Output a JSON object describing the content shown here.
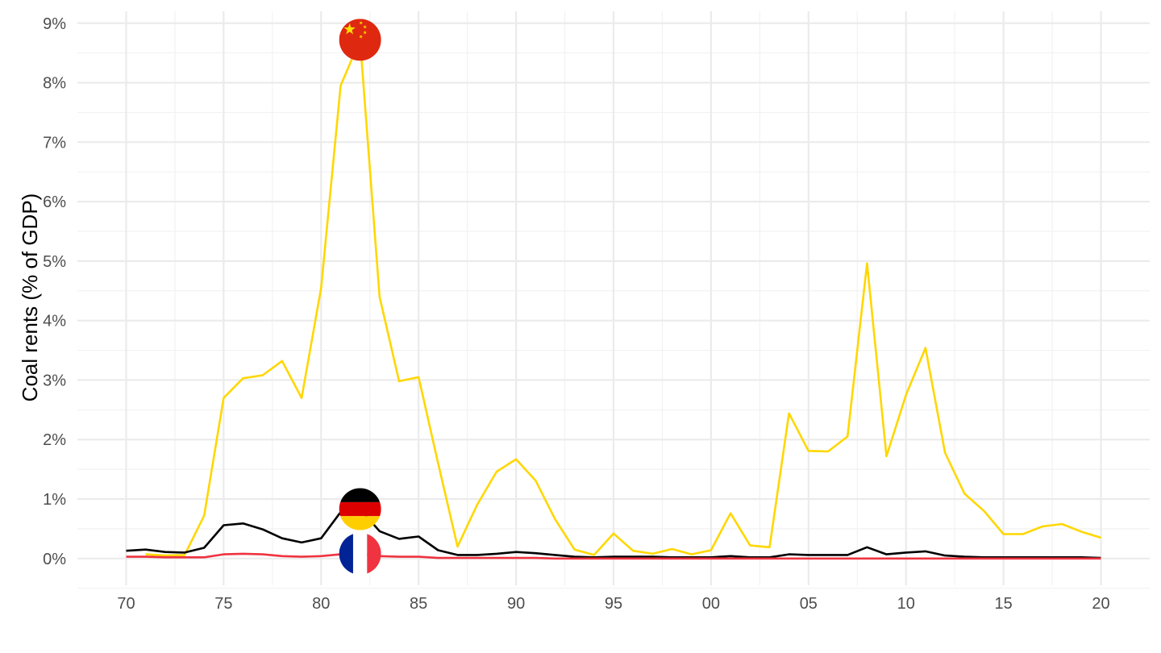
{
  "chart_data": {
    "type": "line",
    "title": "",
    "xlabel": "",
    "ylabel": "Coal rents (% of GDP)",
    "x_ticks": [
      {
        "value": 1970,
        "label": "70"
      },
      {
        "value": 1975,
        "label": "75"
      },
      {
        "value": 1980,
        "label": "80"
      },
      {
        "value": 1985,
        "label": "85"
      },
      {
        "value": 1990,
        "label": "90"
      },
      {
        "value": 1995,
        "label": "95"
      },
      {
        "value": 2000,
        "label": "00"
      },
      {
        "value": 2005,
        "label": "05"
      },
      {
        "value": 2010,
        "label": "10"
      },
      {
        "value": 2015,
        "label": "15"
      },
      {
        "value": 2020,
        "label": "20"
      }
    ],
    "y_ticks": [
      {
        "value": 0,
        "label": "0%"
      },
      {
        "value": 1,
        "label": "1%"
      },
      {
        "value": 2,
        "label": "2%"
      },
      {
        "value": 3,
        "label": "3%"
      },
      {
        "value": 4,
        "label": "4%"
      },
      {
        "value": 5,
        "label": "5%"
      },
      {
        "value": 6,
        "label": "6%"
      },
      {
        "value": 7,
        "label": "7%"
      },
      {
        "value": 8,
        "label": "8%"
      },
      {
        "value": 9,
        "label": "9%"
      }
    ],
    "xlim": [
      1967.5,
      2022.5
    ],
    "ylim": [
      -0.45,
      9.2
    ],
    "grid": true,
    "legend": "flags",
    "series": [
      {
        "country": "China",
        "color": "#FFD700",
        "flag_icon": "china-flag-icon",
        "flag_year": 1982,
        "x": [
          1971,
          1972,
          1973,
          1974,
          1975,
          1976,
          1977,
          1978,
          1979,
          1980,
          1981,
          1982,
          1983,
          1984,
          1985,
          1986,
          1987,
          1988,
          1989,
          1990,
          1991,
          1992,
          1993,
          1994,
          1995,
          1996,
          1997,
          1998,
          1999,
          2000,
          2001,
          2002,
          2003,
          2004,
          2005,
          2006,
          2007,
          2008,
          2009,
          2010,
          2011,
          2012,
          2013,
          2014,
          2015,
          2016,
          2017,
          2018,
          2019,
          2020
        ],
        "y": [
          0.07,
          0.05,
          0.06,
          0.72,
          2.7,
          3.03,
          3.08,
          3.32,
          2.7,
          4.55,
          7.95,
          8.72,
          4.4,
          2.98,
          3.05,
          1.6,
          0.2,
          0.9,
          1.46,
          1.67,
          1.31,
          0.66,
          0.15,
          0.06,
          0.42,
          0.13,
          0.08,
          0.16,
          0.07,
          0.14,
          0.76,
          0.22,
          0.19,
          2.44,
          1.81,
          1.8,
          2.05,
          4.96,
          1.72,
          2.75,
          3.54,
          1.78,
          1.09,
          0.8,
          0.41,
          0.41,
          0.54,
          0.58,
          0.45,
          0.35
        ]
      },
      {
        "country": "Germany",
        "color": "#000000",
        "flag_icon": "germany-flag-icon",
        "flag_year": 1982,
        "x": [
          1970,
          1971,
          1972,
          1973,
          1974,
          1975,
          1976,
          1977,
          1978,
          1979,
          1980,
          1981,
          1982,
          1983,
          1984,
          1985,
          1986,
          1987,
          1988,
          1989,
          1990,
          1991,
          1992,
          1993,
          1994,
          1995,
          1996,
          1997,
          1998,
          1999,
          2000,
          2001,
          2002,
          2003,
          2004,
          2005,
          2006,
          2007,
          2008,
          2009,
          2010,
          2011,
          2012,
          2013,
          2014,
          2015,
          2016,
          2017,
          2018,
          2019,
          2020
        ],
        "y": [
          0.13,
          0.15,
          0.11,
          0.1,
          0.18,
          0.56,
          0.59,
          0.49,
          0.34,
          0.27,
          0.34,
          0.78,
          0.83,
          0.46,
          0.33,
          0.37,
          0.14,
          0.06,
          0.06,
          0.08,
          0.11,
          0.09,
          0.06,
          0.03,
          0.02,
          0.03,
          0.03,
          0.03,
          0.02,
          0.02,
          0.02,
          0.04,
          0.02,
          0.02,
          0.07,
          0.06,
          0.06,
          0.06,
          0.19,
          0.07,
          0.1,
          0.12,
          0.05,
          0.03,
          0.02,
          0.02,
          0.02,
          0.02,
          0.02,
          0.02,
          0.01
        ]
      },
      {
        "country": "France",
        "color": "#EF3340",
        "flag_icon": "france-flag-icon",
        "flag_year": 1982,
        "x": [
          1970,
          1971,
          1972,
          1973,
          1974,
          1975,
          1976,
          1977,
          1978,
          1979,
          1980,
          1981,
          1982,
          1983,
          1984,
          1985,
          1986,
          1987,
          1988,
          1989,
          1990,
          1991,
          1992,
          1993,
          1994,
          1995,
          1996,
          1997,
          1998,
          1999,
          2000,
          2001,
          2002,
          2003,
          2004,
          2005,
          2006,
          2007,
          2008,
          2009,
          2010,
          2011,
          2012,
          2013,
          2014,
          2015,
          2016,
          2017,
          2018,
          2019,
          2020
        ],
        "y": [
          0.03,
          0.03,
          0.02,
          0.02,
          0.02,
          0.07,
          0.08,
          0.07,
          0.04,
          0.03,
          0.04,
          0.07,
          0.08,
          0.04,
          0.03,
          0.03,
          0.01,
          0.01,
          0.01,
          0.01,
          0.01,
          0.01,
          0.0,
          0.0,
          0.0,
          0.0,
          0.0,
          0.0,
          0.0,
          0.0,
          0.0,
          0.0,
          0.0,
          0.0,
          0.0,
          0.0,
          0.0,
          0.0,
          0.0,
          0.0,
          0.0,
          0.0,
          0.0,
          0.0,
          0.0,
          0.0,
          0.0,
          0.0,
          0.0,
          0.0,
          0.0
        ]
      }
    ]
  }
}
